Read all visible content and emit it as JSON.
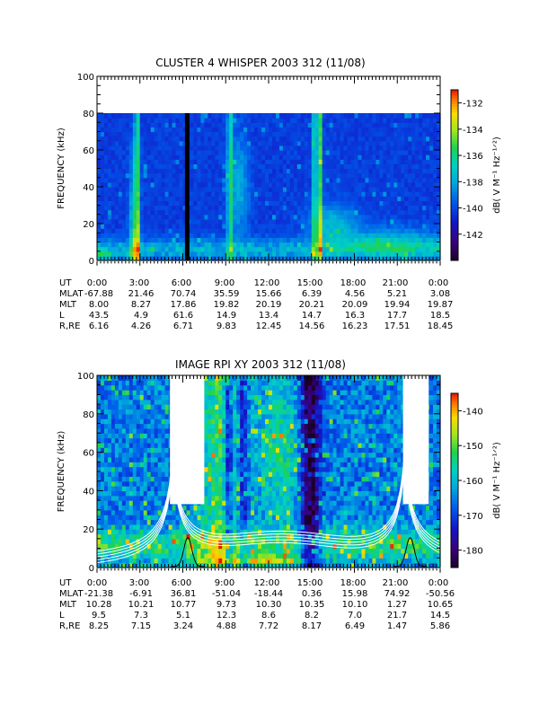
{
  "chart_data": [
    {
      "type": "heatmap",
      "title": "CLUSTER 4 WHISPER 2003 312 (11/08)",
      "ylabel": "FREQUENCY (kHz)",
      "ylim": [
        0,
        100
      ],
      "yticks": [
        "0",
        "20",
        "40",
        "60",
        "80",
        "100"
      ],
      "xlim_hours": [
        0,
        24
      ],
      "xticks": [
        "0:00",
        "3:00",
        "6:00",
        "9:00",
        "12:00",
        "15:00",
        "18:00",
        "21:00",
        "0:00"
      ],
      "colorbar": {
        "label": "dB( V M⁻¹ Hz⁻¹ᐟ²)",
        "range": [
          -144,
          -131
        ],
        "ticks": [
          "-132",
          "-134",
          "-136",
          "-138",
          "-140",
          "-142"
        ]
      },
      "data_top_khz": 80,
      "ephemeris": [
        {
          "label": "UT",
          "values": [
            "0:00",
            "3:00",
            "6:00",
            "9:00",
            "12:00",
            "15:00",
            "18:00",
            "21:00",
            "0:00"
          ]
        },
        {
          "label": "MLAT",
          "values": [
            "-67.88",
            "21.46",
            "70.74",
            "35.59",
            "15.66",
            "6.39",
            "4.56",
            "5.21",
            "3.08"
          ]
        },
        {
          "label": "MLT",
          "values": [
            "8.00",
            "8.27",
            "17.86",
            "19.82",
            "20.19",
            "20.21",
            "20.09",
            "19.94",
            "19.87"
          ]
        },
        {
          "label": "L",
          "values": [
            "43.5",
            "4.9",
            "61.6",
            "14.9",
            "13.4",
            "14.7",
            "16.3",
            "17.7",
            "18.5"
          ]
        },
        {
          "label": "R,RE",
          "values": [
            "6.16",
            "4.26",
            "6.71",
            "9.83",
            "12.45",
            "14.56",
            "16.23",
            "17.51",
            "18.45"
          ]
        }
      ]
    },
    {
      "type": "heatmap",
      "title": "IMAGE RPI XY 2003 312 (11/08)",
      "ylabel": "FREQUENCY (kHz)",
      "ylim": [
        0,
        100
      ],
      "yticks": [
        "0",
        "20",
        "40",
        "60",
        "80",
        "100"
      ],
      "xlim_hours": [
        0,
        24
      ],
      "xticks": [
        "0:00",
        "3:00",
        "6:00",
        "9:00",
        "12:00",
        "15:00",
        "18:00",
        "21:00",
        "0:00"
      ],
      "colorbar": {
        "label": "dB( V M⁻¹ Hz⁻¹ᐟ²)",
        "range": [
          -185,
          -135
        ],
        "ticks": [
          "-140",
          "-150",
          "-160",
          "-170",
          "-180"
        ]
      },
      "gaps_hours": [
        [
          5.1,
          7.5
        ],
        [
          21.4,
          23.2
        ]
      ],
      "ephemeris": [
        {
          "label": "UT",
          "values": [
            "0:00",
            "3:00",
            "6:00",
            "9:00",
            "12:00",
            "15:00",
            "18:00",
            "21:00",
            "0:00"
          ]
        },
        {
          "label": "MLAT",
          "values": [
            "-21.38",
            "-6.91",
            "36.81",
            "-51.04",
            "-18.44",
            "0.36",
            "15.98",
            "74.92",
            "-50.56"
          ]
        },
        {
          "label": "MLT",
          "values": [
            "10.28",
            "10.21",
            "10.77",
            "9.73",
            "10.30",
            "10.35",
            "10.10",
            "1.27",
            "10.65"
          ]
        },
        {
          "label": "L",
          "values": [
            "9.5",
            "7.3",
            "5.1",
            "12.3",
            "8.6",
            "8.2",
            "7.0",
            "21.7",
            "14.5"
          ]
        },
        {
          "label": "R,RE",
          "values": [
            "8.25",
            "7.15",
            "3.24",
            "4.88",
            "7.72",
            "8.17",
            "6.49",
            "1.47",
            "5.86"
          ]
        }
      ]
    }
  ]
}
